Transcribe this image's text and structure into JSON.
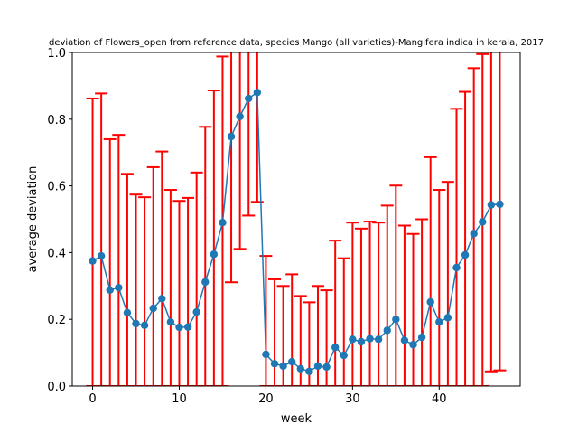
{
  "chart_data": {
    "type": "line",
    "title": "deviation of Flowers_open from reference data, species Mango (all varieties)-Mangifera indica in kerala, 2017",
    "xlabel": "week",
    "ylabel": "average deviation",
    "xlim": [
      -2.35,
      49.35
    ],
    "ylim": [
      0,
      1.0
    ],
    "xticks": [
      0,
      10,
      20,
      30,
      40
    ],
    "xtick_labels": [
      "0",
      "10",
      "20",
      "30",
      "40"
    ],
    "yticks": [
      0,
      0.2,
      0.4,
      0.6,
      0.8,
      1.0
    ],
    "ytick_labels": [
      "0.0",
      "0.2",
      "0.4",
      "0.6",
      "0.8",
      "1.0"
    ],
    "grid": false,
    "line_color": "#1f77b4",
    "errorbar_color": "#ff0000",
    "series": [
      {
        "x": [
          0,
          1,
          2,
          3,
          4,
          5,
          6,
          7,
          8,
          9,
          10,
          11,
          12,
          13,
          14,
          15,
          16,
          17,
          18,
          19,
          20,
          21,
          22,
          23,
          24,
          25,
          26,
          27,
          28,
          29,
          30,
          31,
          32,
          33,
          34,
          35,
          36,
          37,
          38,
          39,
          40,
          41,
          42,
          43,
          44,
          45,
          46,
          47
        ],
        "y": [
          0.375,
          0.39,
          0.288,
          0.295,
          0.22,
          0.187,
          0.182,
          0.233,
          0.262,
          0.192,
          0.176,
          0.177,
          0.222,
          0.312,
          0.395,
          0.49,
          0.748,
          0.808,
          0.862,
          0.88,
          0.095,
          0.067,
          0.06,
          0.073,
          0.052,
          0.044,
          0.06,
          0.057,
          0.116,
          0.092,
          0.14,
          0.133,
          0.142,
          0.14,
          0.167,
          0.2,
          0.137,
          0.124,
          0.146,
          0.252,
          0.192,
          0.205,
          0.355,
          0.393,
          0.457,
          0.492,
          0.543,
          0.545
        ],
        "upper": [
          0.862,
          0.877,
          0.74,
          0.753,
          0.636,
          0.574,
          0.566,
          0.656,
          0.703,
          0.588,
          0.555,
          0.564,
          0.64,
          0.777,
          0.886,
          0.988,
          1.06,
          1.2,
          1.2,
          1.15,
          0.39,
          0.32,
          0.3,
          0.335,
          0.27,
          0.251,
          0.3,
          0.287,
          0.436,
          0.383,
          0.49,
          0.472,
          0.493,
          0.49,
          0.541,
          0.601,
          0.481,
          0.456,
          0.5,
          0.686,
          0.588,
          0.612,
          0.831,
          0.882,
          0.953,
          0.995,
          1.04,
          1.04
        ],
        "lower": [
          0,
          0,
          0,
          0,
          0,
          0,
          0,
          0,
          0,
          0,
          0,
          0,
          0,
          0,
          0,
          0,
          0.311,
          0.411,
          0.511,
          0.552,
          0,
          0,
          0,
          0,
          0,
          0,
          0,
          0,
          0,
          0,
          0,
          0,
          0,
          0,
          0,
          0,
          0,
          0,
          0,
          0,
          0,
          0,
          0,
          0,
          0,
          0,
          0.044,
          0.047
        ]
      }
    ]
  }
}
